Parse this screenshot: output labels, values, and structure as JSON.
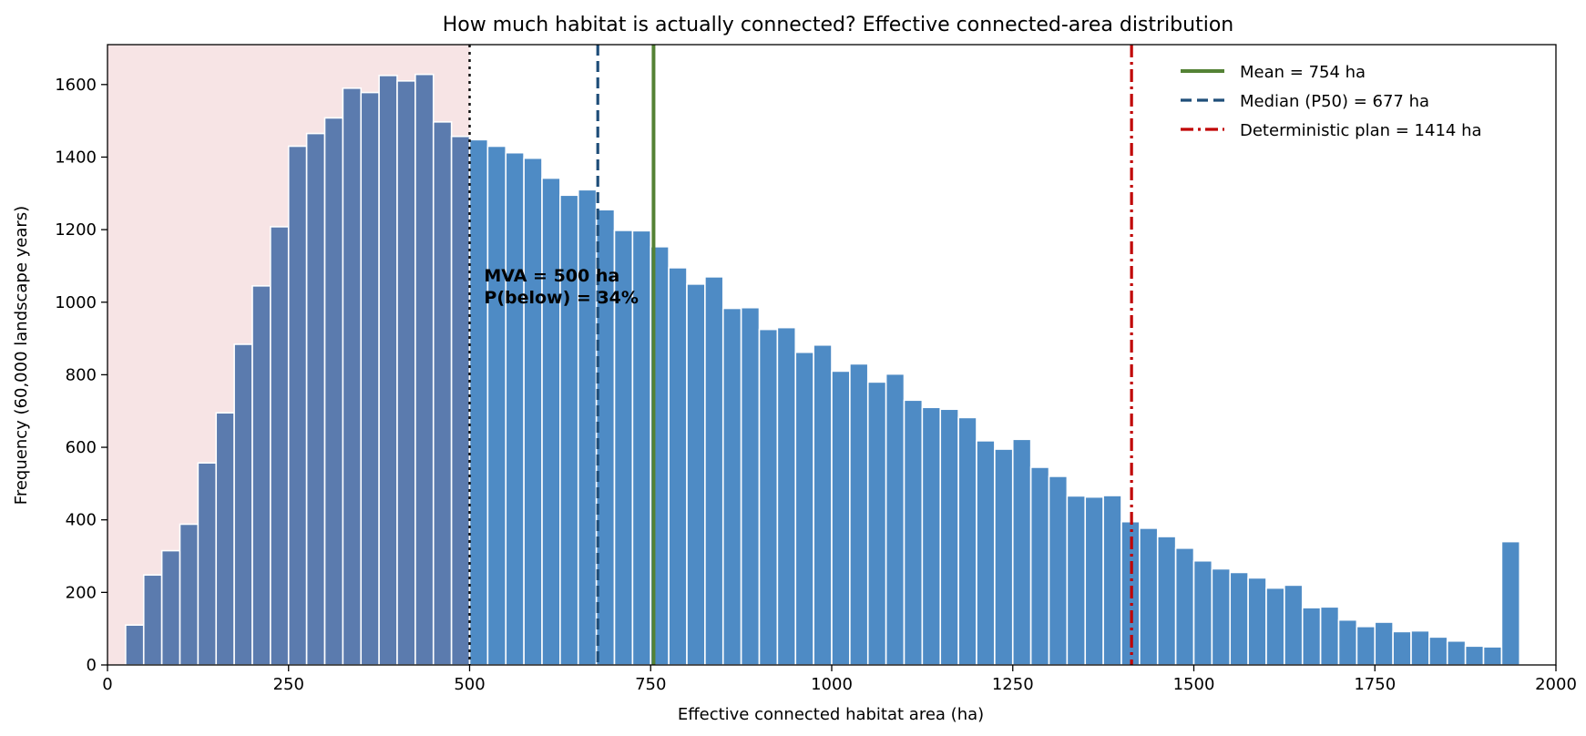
{
  "chart_data": {
    "type": "bar",
    "title": "How much habitat is actually connected? Effective connected-area distribution",
    "xlabel": "Effective connected habitat area  (ha)",
    "ylabel": "Frequency  (60,000 landscape years)",
    "xlim": [
      0,
      2000
    ],
    "ylim": [
      0,
      1710
    ],
    "xticks": [
      0,
      250,
      500,
      750,
      1000,
      1250,
      1500,
      1750,
      2000
    ],
    "yticks": [
      0,
      200,
      400,
      600,
      800,
      1000,
      1200,
      1400,
      1600
    ],
    "grid": false,
    "legend_position": "top-right",
    "bin_start": 25,
    "bin_width": 25,
    "values": [
      110,
      248,
      315,
      388,
      557,
      695,
      884,
      1045,
      1208,
      1430,
      1465,
      1508,
      1590,
      1578,
      1625,
      1610,
      1628,
      1497,
      1457,
      1448,
      1430,
      1412,
      1397,
      1342,
      1295,
      1310,
      1255,
      1198,
      1197,
      1153,
      1095,
      1050,
      1070,
      983,
      985,
      925,
      930,
      862,
      882,
      810,
      830,
      780,
      802,
      730,
      710,
      705,
      682,
      618,
      595,
      622,
      545,
      520,
      466,
      463,
      467,
      395,
      377,
      354,
      322,
      287,
      265,
      255,
      240,
      212,
      220,
      158,
      160,
      124,
      106,
      118,
      92,
      94,
      77,
      66,
      52,
      50,
      340
    ],
    "below_threshold_color": "#5b7bae",
    "above_threshold_color": "#4e8bc5",
    "shaded_region_color": "#f7e4e5",
    "reference_lines": [
      {
        "name": "MVA",
        "x": 500,
        "style": "dotted",
        "color": "#111111"
      },
      {
        "name": "Median (P50) = 677 ha",
        "x": 677,
        "style": "dashed",
        "color": "#1f4e79"
      },
      {
        "name": "Mean = 754 ha",
        "x": 754,
        "style": "solid",
        "color": "#548235"
      },
      {
        "name": "Deterministic plan = 1414 ha",
        "x": 1414,
        "style": "dashdot",
        "color": "#c00000"
      }
    ],
    "legend": [
      {
        "label": "Mean = 754 ha",
        "style": "solid",
        "color": "#548235"
      },
      {
        "label": "Median (P50) = 677 ha",
        "style": "dashed",
        "color": "#1f4e79"
      },
      {
        "label": "Deterministic plan = 1414 ha",
        "style": "dashdot",
        "color": "#c00000"
      }
    ],
    "annotation": {
      "line1": "MVA = 500 ha",
      "line2": "P(below) = 34%",
      "x": 520,
      "y": 1075
    }
  }
}
